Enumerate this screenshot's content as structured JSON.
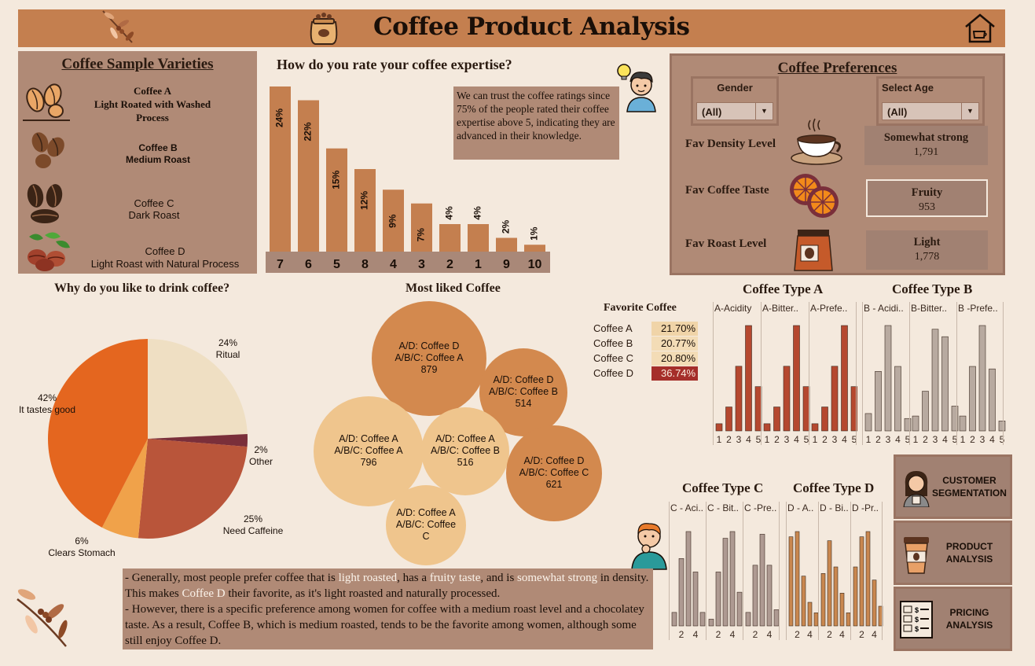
{
  "header": {
    "title": "Coffee Product Analysis"
  },
  "varieties": {
    "title": "Coffee Sample Varieties",
    "items": [
      {
        "name": "Coffee A",
        "desc1": "Light Roated with Washed",
        "desc2": "Process"
      },
      {
        "name": "Coffee B",
        "desc1": "Medium Roast",
        "desc2": ""
      },
      {
        "name": "Coffee C",
        "desc1": "Dark Roast",
        "desc2": ""
      },
      {
        "name": "Coffee D",
        "desc1": "Light Roast with Natural Process",
        "desc2": ""
      }
    ]
  },
  "expertise": {
    "title": "How do you rate your coffee expertise?",
    "note": "We can trust the coffee ratings since 75% of the people rated their coffee expertise above 5, indicating they are advanced in their knowledge."
  },
  "preferences": {
    "title": "Coffee Preferences",
    "gender": {
      "label": "Gender",
      "value": "(All)"
    },
    "age": {
      "label": "Select Age",
      "value": "(All)"
    },
    "density": {
      "label": "Fav Density Level",
      "name": "Somewhat strong",
      "value": "1,791"
    },
    "taste": {
      "label": "Fav Coffee Taste",
      "name": "Fruity",
      "value": "953"
    },
    "roast": {
      "label": "Fav Roast Level",
      "name": "Light",
      "value": "1,778"
    }
  },
  "why": {
    "title": "Why do you like to drink coffee?"
  },
  "most_liked": {
    "title": "Most liked Coffee"
  },
  "favorite": {
    "title": "Favorite Coffee",
    "rows": [
      {
        "name": "Coffee A",
        "value": "21.70%",
        "color": "#f0d4a8"
      },
      {
        "name": "Coffee B",
        "value": "20.77%",
        "color": "#f3dcb6"
      },
      {
        "name": "Coffee C",
        "value": "20.80%",
        "color": "#f3dcb6"
      },
      {
        "name": "Coffee D",
        "value": "36.74%",
        "color": "#a52e2a"
      }
    ]
  },
  "types": {
    "a": {
      "title": "Coffee Type A",
      "cols": [
        "A-Acidity",
        "A-Bitter..",
        "A-Prefe.."
      ]
    },
    "b": {
      "title": "Coffee Type B",
      "cols": [
        "B - Acidi..",
        "B-Bitter..",
        "B -Prefe.."
      ]
    },
    "c": {
      "title": "Coffee Type C",
      "cols": [
        "C - Aci..",
        "C - Bit..",
        "C -Pre.."
      ]
    },
    "d": {
      "title": "Coffee Type D",
      "cols": [
        "D - A..",
        "D - Bi..",
        "D -Pr.."
      ]
    }
  },
  "nav": {
    "segmentation": "CUSTOMER SEGMENTATION",
    "product": "PRODUCT ANALYSIS",
    "pricing": "PRICING ANALYSIS"
  },
  "summary": {
    "p1a": "- Generally, most people prefer coffee that is ",
    "h1": "light roasted",
    "p1b": ", has a ",
    "h2": "fruity taste",
    "p1c": ", and is ",
    "h3": "somewhat strong",
    "p1d": " in density. This makes ",
    "h4": "Coffee D",
    "p1e": " their favorite, as it's light roasted and naturally processed.",
    "p2": "- However, there is a specific preference among women for coffee with a medium roast level and a chocolatey taste. As a result, Coffee B, which is medium roasted, tends to be the favorite among women, although some still enjoy Coffee D."
  },
  "chart_data": [
    {
      "type": "bar",
      "title": "How do you rate your coffee expertise?",
      "categories": [
        "7",
        "6",
        "5",
        "8",
        "4",
        "3",
        "2",
        "1",
        "9",
        "10"
      ],
      "values": [
        24,
        22,
        15,
        12,
        9,
        7,
        4,
        4,
        2,
        1
      ],
      "labels": [
        "24%",
        "22%",
        "15%",
        "12%",
        "9%",
        "7%",
        "4%",
        "4%",
        "2%",
        "1%"
      ],
      "color": "#c47f4f"
    },
    {
      "type": "pie",
      "title": "Why do you like to drink coffee?",
      "slices": [
        {
          "label": "Ritual",
          "pct": "24%",
          "value": 24,
          "color": "#efdfc3"
        },
        {
          "label": "Other",
          "pct": "2%",
          "value": 2,
          "color": "#7a2f3a"
        },
        {
          "label": "Need Caffeine",
          "pct": "25%",
          "value": 25,
          "color": "#b9553a"
        },
        {
          "label": "Clears Stomach",
          "pct": "6%",
          "value": 6,
          "color": "#f0a24a"
        },
        {
          "label": "It tastes good",
          "pct": "42%",
          "value": 42,
          "color": "#e4661f"
        }
      ]
    },
    {
      "type": "bubble",
      "title": "Most liked Coffee",
      "bubbles": [
        {
          "line1": "A/D: Coffee D",
          "line2": "A/B/C: Coffee A",
          "value": "879",
          "color": "#d3894e"
        },
        {
          "line1": "A/D: Coffee D",
          "line2": "A/B/C: Coffee B",
          "value": "514",
          "color": "#d3894e"
        },
        {
          "line1": "A/D: Coffee A",
          "line2": "A/B/C: Coffee A",
          "value": "796",
          "color": "#efc58d"
        },
        {
          "line1": "A/D: Coffee A",
          "line2": "A/B/C: Coffee B",
          "value": "516",
          "color": "#efc58d"
        },
        {
          "line1": "A/D: Coffee D",
          "line2": "A/B/C: Coffee C",
          "value": "621",
          "color": "#d3894e"
        },
        {
          "line1": "A/D: Coffee A",
          "line2": "A/B/C: Coffee",
          "value": "C",
          "color": "#efc58d"
        }
      ]
    },
    {
      "type": "bar",
      "title": "Coffee Type A",
      "color": "#b5482f",
      "ticks": [
        "1",
        "2",
        "3",
        "4",
        "5"
      ],
      "series": [
        {
          "name": "A-Acidity",
          "values": [
            6,
            20,
            54,
            88,
            37
          ]
        },
        {
          "name": "A-Bitter..",
          "values": [
            6,
            20,
            54,
            88,
            37
          ]
        },
        {
          "name": "A-Prefe..",
          "values": [
            6,
            20,
            54,
            88,
            37
          ]
        }
      ]
    },
    {
      "type": "bar",
      "title": "Coffee Type B",
      "color": "#b8aaa0",
      "ticks": [
        "1",
        "2",
        "3",
        "4",
        "5"
      ],
      "series": [
        {
          "name": "B - Acidi..",
          "values": [
            14,
            48,
            85,
            52,
            10
          ]
        },
        {
          "name": "B-Bitter..",
          "values": [
            12,
            32,
            82,
            76,
            20
          ]
        },
        {
          "name": "B -Prefe..",
          "values": [
            12,
            52,
            85,
            50,
            8
          ]
        }
      ]
    },
    {
      "type": "bar",
      "title": "Coffee Type C",
      "color": "#ae9a92",
      "ticks": [
        "2",
        "4"
      ],
      "series": [
        {
          "name": "C - Aci..",
          "values": [
            10,
            50,
            70,
            40,
            10
          ]
        },
        {
          "name": "C - Bit..",
          "values": [
            5,
            40,
            65,
            70,
            25
          ]
        },
        {
          "name": "C -Pre..",
          "values": [
            10,
            45,
            68,
            45,
            12
          ]
        }
      ]
    },
    {
      "type": "bar",
      "title": "Coffee Type D",
      "color": "#c9874f",
      "ticks": [
        "2",
        "4"
      ],
      "series": [
        {
          "name": "D - A..",
          "values": [
            68,
            72,
            38,
            18,
            10
          ]
        },
        {
          "name": "D - Bi..",
          "values": [
            40,
            65,
            45,
            25,
            10
          ]
        },
        {
          "name": "D -Pr..",
          "values": [
            45,
            68,
            72,
            35,
            15
          ]
        }
      ]
    }
  ]
}
